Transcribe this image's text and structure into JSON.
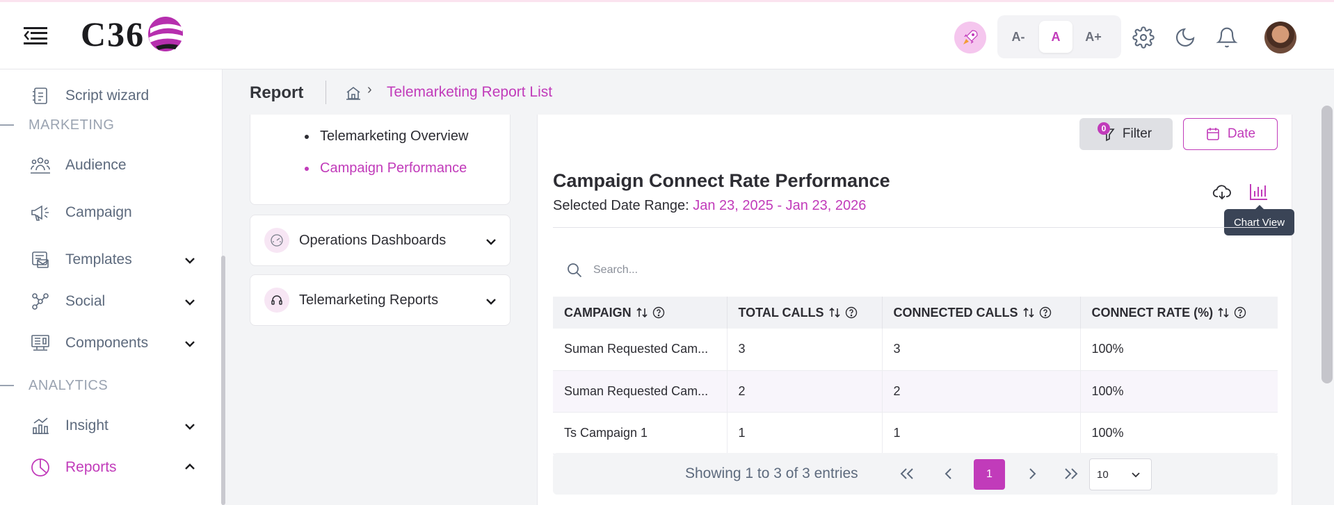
{
  "header": {
    "logo_text": "C36",
    "font_sizes": [
      "A-",
      "A",
      "A+"
    ],
    "active_font_size": "A"
  },
  "sidebar": {
    "items": [
      {
        "label": "Script wizard",
        "icon": "script-wizard-icon"
      },
      {
        "label": "Audience",
        "icon": "audience-icon"
      },
      {
        "label": "Campaign",
        "icon": "megaphone-icon"
      },
      {
        "label": "Templates",
        "icon": "templates-icon"
      },
      {
        "label": "Social",
        "icon": "social-icon"
      },
      {
        "label": "Components",
        "icon": "components-icon"
      },
      {
        "label": "Insight",
        "icon": "insight-icon"
      },
      {
        "label": "Reports",
        "icon": "pie-chart-icon"
      }
    ],
    "sections": {
      "marketing": "MARKETING",
      "analytics": "ANALYTICS"
    }
  },
  "breadcrumb": {
    "title": "Report",
    "current": "Telemarketing Report List"
  },
  "report_menu": {
    "subitems": [
      "Telemarketing Overview",
      "Campaign Performance"
    ],
    "active_subitem": "Campaign Performance",
    "accordions": [
      "Operations Dashboards",
      "Telemarketing Reports"
    ]
  },
  "main": {
    "filter_label": "Filter",
    "filter_count": "0",
    "date_label": "Date",
    "title": "Campaign Connect Rate Performance",
    "date_range_label": "Selected Date Range: ",
    "date_range_value": "Jan 23, 2025 - Jan 23, 2026",
    "tooltip": "Chart View",
    "search_placeholder": "Search...",
    "columns": [
      "CAMPAIGN",
      "TOTAL CALLS",
      "CONNECTED CALLS",
      "CONNECT RATE (%)"
    ],
    "rows": [
      [
        "Suman Requested Cam...",
        "3",
        "3",
        "100%"
      ],
      [
        "Suman Requested Cam...",
        "2",
        "2",
        "100%"
      ],
      [
        "Ts Campaign 1",
        "1",
        "1",
        "100%"
      ]
    ],
    "pagination": {
      "info": "Showing 1 to 3 of 3 entries",
      "current_page": "1",
      "page_size": "10"
    }
  },
  "colors": {
    "accent": "#c13bba",
    "sidebar_text": "#5d6a7d",
    "tooltip_bg": "#3a4456"
  }
}
